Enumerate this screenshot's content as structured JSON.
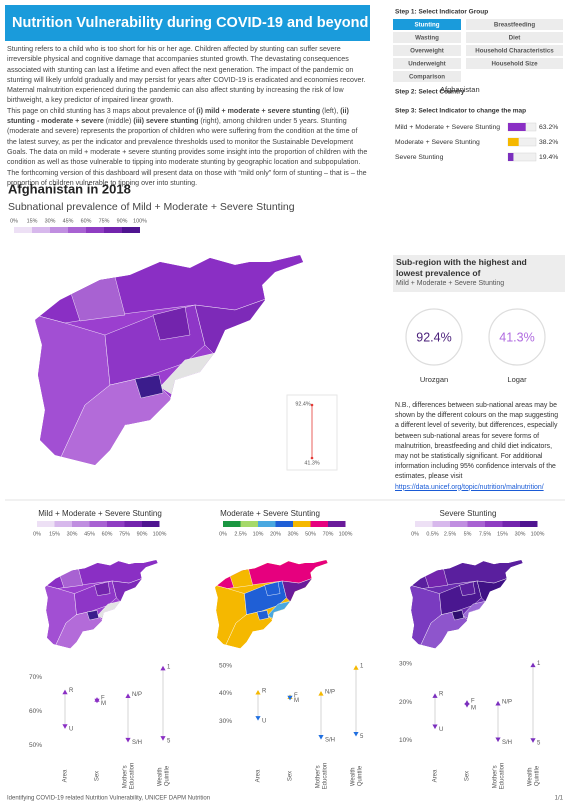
{
  "header": {
    "title": "Nutrition Vulnerability during COVID-19 and beyond"
  },
  "intro": {
    "paragraph_1": "Stunting refers to a child who is too short for his or her age.  Children affected by stunting can suffer severe irreversible physical and cognitive damage that accompanies stunted growth.  The devastating consequences associated with stunting can last a lifetime and even affect the next generation.  The impact of the pandemic on stunting will likely unfold gradually and may persist for years after COVID-19 is eradicated and economies recover. Maternal malnutrition experienced during the pandemic can also affect stunting by increasing the risk of low birthweight, a key predictor of impaired linear growth.",
    "paragraph_2": [
      {
        "text": "This page on child stunting has 3 maps about prevalence of ",
        "bold": false
      },
      {
        "text": "(i) mild + moderate + severe stunting",
        "bold": true
      },
      {
        "text": " (left), ",
        "bold": false
      },
      {
        "text": "(ii) stunting - moderate + severe",
        "bold": true
      },
      {
        "text": " (middle) ",
        "bold": false
      },
      {
        "text": "(iii) severe stunting",
        "bold": true
      },
      {
        "text": " (right), among children under 5 years. Stunting (moderate and severe) represents the proportion of children who were suffering from the condition at the time of the latest survey, as per the indicator and prevalence thresholds used to monitor the Sustainable Development Goals. The data on mild + moderate + severe stunting provides some insight into the proportion of children with the condition as well as those vulnerable to tipping into moderate stunting by geographic location and subpopulation. The forthcoming version of this dashboard will present data on those with “mild only” form of stunting – that is – the proportion of children vulnerable to tipping over into stunting.",
        "bold": false
      }
    ]
  },
  "controls": {
    "step_1": "Step 1: Select Indicator Group",
    "indicator_groups": [
      "Stunting",
      "Breastfeeding",
      "Wasting",
      "Diet",
      "Overweight",
      "Household Characteristics",
      "Underweight",
      "Household Size",
      "Comparison"
    ],
    "selected_group": 0,
    "step_2": "Step 2: Select Country",
    "country": "Afghanistan",
    "step_3": "Step 3: Select Indicator to change the map"
  },
  "indicator_chart": {
    "type": "bar",
    "orientation": "horizontal",
    "categories": [
      "Mild + Moderate + Severe Stunting",
      "Moderate + Severe Stunting",
      "Severe Stunting"
    ],
    "values": [
      63.2,
      38.2,
      19.4
    ],
    "value_labels": [
      "63.2%",
      "38.2%",
      "19.4%"
    ],
    "colors": [
      "#8a2fc4",
      "#f5b800",
      "#7b2fbe"
    ],
    "xlim": [
      0,
      100
    ]
  },
  "main_map": {
    "title": "Afghanistan in 2018",
    "subtitle": "Subnational prevalence of Mild + Moderate + Severe Stunting",
    "legend": {
      "colors": [
        "#ede0f5",
        "#d7b8ec",
        "#c08ee0",
        "#a862d2",
        "#8f3dc2",
        "#7324ad",
        "#4f1490"
      ],
      "ticks": [
        {
          "value": 0,
          "label": "0%"
        },
        {
          "value": 15,
          "label": "15%"
        },
        {
          "value": 30,
          "label": "30%"
        },
        {
          "value": 45,
          "label": "45%"
        },
        {
          "value": 60,
          "label": "60%"
        },
        {
          "value": 75,
          "label": "75%"
        },
        {
          "value": 90,
          "label": "90%"
        },
        {
          "value": 100,
          "label": "100%"
        }
      ]
    }
  },
  "range_chart": {
    "type": "range",
    "values": [
      92.4,
      41.3
    ],
    "value_labels": [
      "92.4%",
      "41.3%"
    ],
    "color": "#e53935"
  },
  "extremes": {
    "title": "Sub-region with the highest and lowest prevalence of",
    "indicator": "Mild + Moderate + Severe Stunting",
    "regions": [
      "Urozgan",
      "Logar"
    ]
  },
  "note": {
    "text": "N.B., differences between sub-national areas may be shown by the different colours on the map suggesting a different level of severity, but differences, especially between sub-national areas for severe forms of malnutrition, breastfeeding and child diet indicators, may not be statistically significant. For additional information including 95% confidence intervals of the estimates, please visit",
    "link": "https://data.unicef.org/topic/nutrition/malnutrition/"
  },
  "panels": [
    {
      "title": "Mild + Moderate + Severe Stunting",
      "legend": {
        "colors": [
          "#ede0f5",
          "#d7b8ec",
          "#c08ee0",
          "#a862d2",
          "#8f3dc2",
          "#7324ad",
          "#4f1490"
        ],
        "ticks": [
          {
            "value": 0,
            "label": "0%"
          },
          {
            "value": 15,
            "label": "15%"
          },
          {
            "value": 30,
            "label": "30%"
          },
          {
            "value": 45,
            "label": "45%"
          },
          {
            "value": 60,
            "label": "60%"
          },
          {
            "value": 75,
            "label": "75%"
          },
          {
            "value": 90,
            "label": "90%"
          },
          {
            "value": 100,
            "label": "100%"
          }
        ]
      },
      "chart": {
        "type": "range",
        "categories": [
          "Area",
          "Sex",
          "Mother's Education",
          "Wealth Quintile"
        ],
        "high": {
          "labels": [
            "R",
            "F",
            "N/P",
            "1"
          ],
          "values": [
            65.6,
            63.4,
            64.5,
            72.6
          ],
          "color": "#8a2fc4"
        },
        "low": {
          "labels": [
            "U",
            "M",
            "S/H",
            "5"
          ],
          "values": [
            55.5,
            63.0,
            51.5,
            52.0
          ],
          "color": "#8a2fc4"
        },
        "ylim": [
          48,
          75
        ],
        "yticks": [
          {
            "value": 50,
            "label": "50%"
          },
          {
            "value": 60,
            "label": "60%"
          },
          {
            "value": 70,
            "label": "70%"
          }
        ]
      }
    },
    {
      "title": "Moderate + Severe Stunting",
      "legend": {
        "colors": [
          "#1a9641",
          "#a6d96a",
          "#4aa8e0",
          "#1f5fd6",
          "#f5b800",
          "#e6007e",
          "#6a1b9a"
        ],
        "ticks": [
          {
            "value": 0,
            "label": "0%"
          },
          {
            "value": 2.5,
            "label": "2.5%"
          },
          {
            "value": 10,
            "label": "10%"
          },
          {
            "value": 20,
            "label": "20%"
          },
          {
            "value": 30,
            "label": "30%"
          },
          {
            "value": 50,
            "label": "50%"
          },
          {
            "value": 70,
            "label": "70%"
          },
          {
            "value": 100,
            "label": "100%"
          }
        ]
      },
      "chart": {
        "type": "range",
        "categories": [
          "Area",
          "Sex",
          "Mother's Education",
          "Wealth Quintile"
        ],
        "high": {
          "labels": [
            "R",
            "F",
            "N/P",
            "1"
          ],
          "values": [
            40.4,
            38.8,
            40.0,
            49.3
          ],
          "color": "#f5b800"
        },
        "low": {
          "labels": [
            "U",
            "M",
            "S/H",
            "5"
          ],
          "values": [
            31.1,
            38.4,
            24.3,
            25.4
          ],
          "color": "#1f6fe0"
        },
        "ylim": [
          19,
          52
        ],
        "yticks": [
          {
            "value": 30,
            "label": "30%"
          },
          {
            "value": 40,
            "label": "40%"
          },
          {
            "value": 50,
            "label": "50%"
          }
        ]
      }
    },
    {
      "title": "Severe Stunting",
      "legend": {
        "colors": [
          "#ede0f5",
          "#d7b8ec",
          "#c08ee0",
          "#a862d2",
          "#8f3dc2",
          "#7324ad",
          "#4f1490"
        ],
        "ticks": [
          {
            "value": 0,
            "label": "0%"
          },
          {
            "value": 0.5,
            "label": "0.5%"
          },
          {
            "value": 2.5,
            "label": "2.5%"
          },
          {
            "value": 5,
            "label": "5%"
          },
          {
            "value": 7.5,
            "label": "7.5%"
          },
          {
            "value": 15,
            "label": "15%"
          },
          {
            "value": 30,
            "label": "30%"
          },
          {
            "value": 100,
            "label": "100%"
          }
        ]
      },
      "chart": {
        "type": "range",
        "categories": [
          "Area",
          "Sex",
          "Mother's Education",
          "Wealth Quintile"
        ],
        "high": {
          "labels": [
            "R",
            "F",
            "N/P",
            "1"
          ],
          "values": [
            21.7,
            19.9,
            19.7,
            29.7
          ],
          "color": "#7b2fbe"
        },
        "low": {
          "labels": [
            "U",
            "M",
            "S/H",
            "5"
          ],
          "values": [
            13.6,
            19.2,
            10.2,
            10.0
          ],
          "color": "#7b2fbe"
        },
        "ylim": [
          7,
          31
        ],
        "yticks": [
          {
            "value": 10,
            "label": "10%"
          },
          {
            "value": 20,
            "label": "20%"
          },
          {
            "value": 30,
            "label": "30%"
          }
        ]
      }
    }
  ],
  "footer": {
    "text": "Identifying COVID-19 related Nutrition Vulnerability,  UNICEF DAPM Nutrition",
    "page": "1/1"
  }
}
